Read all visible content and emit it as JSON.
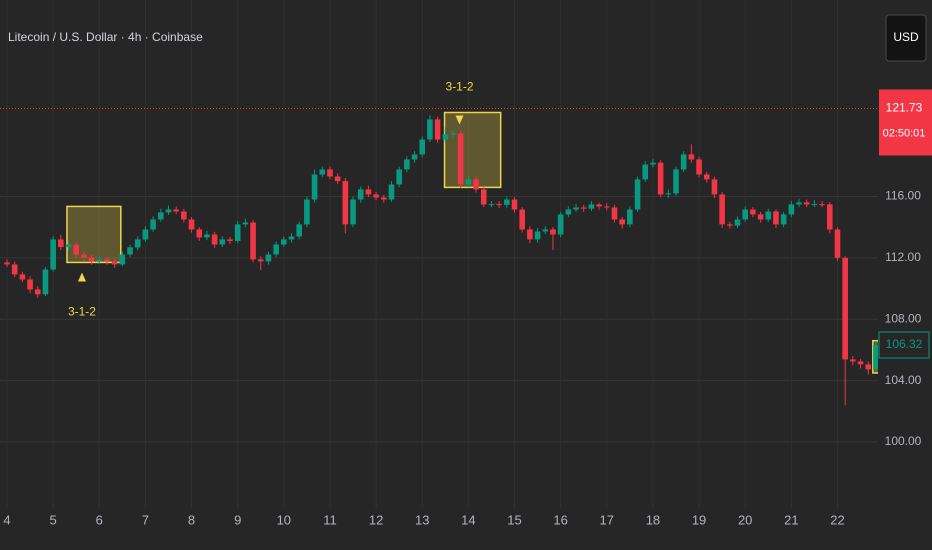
{
  "chart_data": {
    "type": "candlestick",
    "title": "Litecoin / U.S. Dollar · 4h · Coinbase",
    "currency_button": "USD",
    "up_color": "#089981",
    "down_color": "#f23645",
    "grid": true,
    "xlim": [
      -0.91,
      113.27
    ],
    "ylim": [
      95.7,
      128.8
    ],
    "yticks": [
      {
        "value": 116,
        "label": "116.00"
      },
      {
        "value": 112,
        "label": "112.00"
      },
      {
        "value": 108,
        "label": "108.00"
      },
      {
        "value": 104,
        "label": "104.00"
      },
      {
        "value": 100,
        "label": "100.00"
      }
    ],
    "xticks": [
      {
        "value": 0,
        "label": "4"
      },
      {
        "value": 6,
        "label": "5"
      },
      {
        "value": 12,
        "label": "6"
      },
      {
        "value": 18,
        "label": "7"
      },
      {
        "value": 24,
        "label": "8"
      },
      {
        "value": 30,
        "label": "9"
      },
      {
        "value": 36,
        "label": "10"
      },
      {
        "value": 42,
        "label": "11"
      },
      {
        "value": 48,
        "label": "12"
      },
      {
        "value": 54,
        "label": "13"
      },
      {
        "value": 60,
        "label": "14"
      },
      {
        "value": 66,
        "label": "15"
      },
      {
        "value": 72,
        "label": "16"
      },
      {
        "value": 78,
        "label": "17"
      },
      {
        "value": 84,
        "label": "18"
      },
      {
        "value": 90,
        "label": "19"
      },
      {
        "value": 96,
        "label": "20"
      },
      {
        "value": 102,
        "label": "21"
      },
      {
        "value": 108,
        "label": "22"
      }
    ],
    "open": [
      111.7,
      111.57,
      110.92,
      110.59,
      109.94,
      109.62,
      111.24,
      113.2,
      112.7,
      112.87,
      112.22,
      112.03,
      111.77,
      111.9,
      111.77,
      111.57,
      112.22,
      112.68,
      113.2,
      113.85,
      114.5,
      114.96,
      115.15,
      115.02,
      114.5,
      113.85,
      113.33,
      113.52,
      112.87,
      113.2,
      113.1,
      114.18,
      114.3,
      111.9,
      111.77,
      112.22,
      112.87,
      113.2,
      113.39,
      114.18,
      115.8,
      117.43,
      117.76,
      117.3,
      117.0,
      114.18,
      115.8,
      116.46,
      116.13,
      115.93,
      115.8,
      116.78,
      117.76,
      118.41,
      118.74,
      119.71,
      121.02,
      119.71,
      120.04,
      120.1,
      116.78,
      117.11,
      116.46,
      115.48,
      115.5,
      115.45,
      115.8,
      115.15,
      113.85,
      113.2,
      113.72,
      113.85,
      113.52,
      114.83,
      115.15,
      115.28,
      115.2,
      115.48,
      115.35,
      115.28,
      114.5,
      114.18,
      115.15,
      117.11,
      118.08,
      118.2,
      116.13,
      116.2,
      117.76,
      118.74,
      118.41,
      117.43,
      117.11,
      116.13,
      114.18,
      114.1,
      114.5,
      115.15,
      114.83,
      114.5,
      115.02,
      114.18,
      114.83,
      115.48,
      115.61,
      115.48,
      115.5,
      115.48,
      113.85,
      112.0,
      105.38,
      105.25,
      105.06,
      104.73
    ],
    "high": [
      111.9,
      111.75,
      111.1,
      110.8,
      110.15,
      111.4,
      113.4,
      113.5,
      113.1,
      113.0,
      112.4,
      112.2,
      112.1,
      112.05,
      111.95,
      112.4,
      112.85,
      113.4,
      114.05,
      114.7,
      115.2,
      115.4,
      115.35,
      115.2,
      114.65,
      114.0,
      113.75,
      113.7,
      113.4,
      113.35,
      114.4,
      114.55,
      114.45,
      112.1,
      112.4,
      113.05,
      113.4,
      113.6,
      114.35,
      116.0,
      117.75,
      117.95,
      117.95,
      117.5,
      117.2,
      116.0,
      116.65,
      116.7,
      116.3,
      116.1,
      117.0,
      117.95,
      118.6,
      118.95,
      119.9,
      121.3,
      121.2,
      120.5,
      120.3,
      120.25,
      117.35,
      117.3,
      116.6,
      115.7,
      115.7,
      116.0,
      115.95,
      115.3,
      114.05,
      113.95,
      114.05,
      114.0,
      115.0,
      115.35,
      115.5,
      115.45,
      115.7,
      115.6,
      115.55,
      115.45,
      114.65,
      115.35,
      117.3,
      118.3,
      118.45,
      118.35,
      116.45,
      117.95,
      118.95,
      119.4,
      118.6,
      117.6,
      117.3,
      116.3,
      114.35,
      114.7,
      115.35,
      115.3,
      115.0,
      115.2,
      115.15,
      115.0,
      115.7,
      115.85,
      115.8,
      115.75,
      115.7,
      115.65,
      114.0,
      112.1,
      105.6,
      105.4,
      105.25,
      106.5
    ],
    "low": [
      111.4,
      110.75,
      110.4,
      109.7,
      109.4,
      109.5,
      111.1,
      112.5,
      112.5,
      112.0,
      111.8,
      111.55,
      111.6,
      111.55,
      111.35,
      111.45,
      112.05,
      112.5,
      113.05,
      113.7,
      114.35,
      114.8,
      114.85,
      114.3,
      113.65,
      113.1,
      113.15,
      112.65,
      112.7,
      112.9,
      112.95,
      114.0,
      111.7,
      111.2,
      111.55,
      112.05,
      112.7,
      113.0,
      113.2,
      114.0,
      115.6,
      117.25,
      117.1,
      116.8,
      113.6,
      114.0,
      115.6,
      115.95,
      115.75,
      115.6,
      115.65,
      116.6,
      117.6,
      118.2,
      118.55,
      119.55,
      119.5,
      119.5,
      119.85,
      116.55,
      116.6,
      116.25,
      115.3,
      115.3,
      115.25,
      115.25,
      114.95,
      113.65,
      112.95,
      113.0,
      113.55,
      112.5,
      113.35,
      114.65,
      115.0,
      115.0,
      115.05,
      115.15,
      115.1,
      114.3,
      113.9,
      114.0,
      115.0,
      116.95,
      117.9,
      115.95,
      115.9,
      116.05,
      117.6,
      118.2,
      117.25,
      116.9,
      115.9,
      113.95,
      113.9,
      113.95,
      114.35,
      114.65,
      114.3,
      114.35,
      113.95,
      114.0,
      114.65,
      115.3,
      115.3,
      115.3,
      115.3,
      113.6,
      111.8,
      102.4,
      105.0,
      104.8,
      104.4,
      104.6
    ],
    "close": [
      111.57,
      110.92,
      110.59,
      109.94,
      109.62,
      111.24,
      113.2,
      112.7,
      112.87,
      112.22,
      112.03,
      111.77,
      111.9,
      111.77,
      111.57,
      112.22,
      112.68,
      113.2,
      113.85,
      114.5,
      114.96,
      115.15,
      115.02,
      114.5,
      113.85,
      113.33,
      113.52,
      112.87,
      113.2,
      113.1,
      114.18,
      114.3,
      111.9,
      111.77,
      112.22,
      112.87,
      113.2,
      113.39,
      114.18,
      115.8,
      117.43,
      117.76,
      117.3,
      117.0,
      114.18,
      115.8,
      116.46,
      116.13,
      115.93,
      115.8,
      116.78,
      117.76,
      118.41,
      118.74,
      119.71,
      121.02,
      119.71,
      120.04,
      120.1,
      116.78,
      117.11,
      116.46,
      115.48,
      115.5,
      115.45,
      115.8,
      115.15,
      113.85,
      113.2,
      113.72,
      113.85,
      113.52,
      114.83,
      115.15,
      115.28,
      115.2,
      115.48,
      115.35,
      115.28,
      114.5,
      114.18,
      115.15,
      117.11,
      118.08,
      118.2,
      116.13,
      116.2,
      117.76,
      118.74,
      118.41,
      117.43,
      117.11,
      116.13,
      114.18,
      114.1,
      114.5,
      115.15,
      114.83,
      114.5,
      115.02,
      114.18,
      114.83,
      115.48,
      115.61,
      115.48,
      115.5,
      115.48,
      113.85,
      112.0,
      105.38,
      105.25,
      105.06,
      104.73,
      106.32
    ],
    "patterns": [
      {
        "label": "3-1-2",
        "direction": "up",
        "start": 7.8,
        "end": 14.8,
        "top": 115.35,
        "bottom": 111.7
      },
      {
        "label": "3-1-2",
        "direction": "down",
        "start": 56.9,
        "end": 64.2,
        "top": 121.47,
        "bottom": 116.59
      },
      {
        "direction": "up",
        "start": 112.6,
        "end": 114,
        "top": 106.6,
        "bottom": 104.5
      }
    ],
    "price_line": {
      "value": 121.73,
      "label": "121.73",
      "countdown": "02:50:01",
      "color": "#f23645"
    },
    "last_price": {
      "value": 106.32,
      "label": "106.32",
      "color": "#089981"
    }
  }
}
